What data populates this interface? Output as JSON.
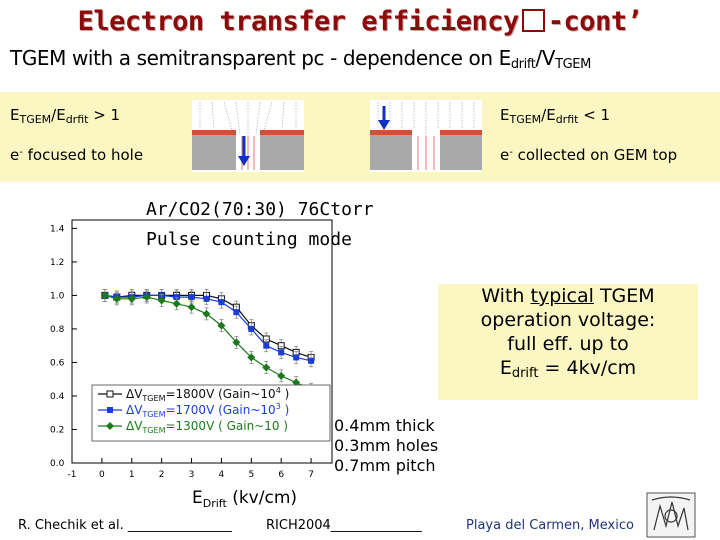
{
  "slide": {
    "title_left": "Electron transfer efficiency",
    "title_right": "-cont’",
    "subtitle": {
      "main": "TGEM with a semitransparent pc - dependence on E",
      "sub1": "drift",
      "slash": "/V",
      "sub2": "TGEM"
    }
  },
  "conditions": {
    "left": {
      "e1": "E",
      "s1": "TGEM",
      "mid": "/E",
      "s2": "drfit",
      "rel": " > 1",
      "desc_a": "e",
      "desc_sup": "-",
      "desc_b": " focused to hole"
    },
    "right": {
      "e1": "E",
      "s1": "TGEM",
      "mid": "/E",
      "s2": "drfit",
      "rel": " < 1",
      "desc_a": "e",
      "desc_sup": "-",
      "desc_b": " collected on GEM top"
    }
  },
  "callout": {
    "line1_a": "With ",
    "line1_u": "typical",
    "line1_b": " TGEM",
    "line2": "operation voltage:",
    "line3": "full eff. up to",
    "line4_a": "E",
    "line4_sub": "drift",
    "line4_b": " = 4kv/cm"
  },
  "geometry_note": [
    "0.4mm thick",
    "0.3mm holes",
    "0.7mm pitch"
  ],
  "footer": {
    "author": "R. Chechik et al. ________________",
    "event": "RICH2004______________",
    "location": "Playa del Carmen, Mexico"
  },
  "colors": {
    "title": "#8b0a0a",
    "band": "#fbf7c3",
    "series_black": "#111111",
    "series_blue": "#1a3fd6",
    "series_green": "#1c7a1c"
  },
  "chart_data": {
    "type": "line",
    "handwritten_title_1": "Ar/CO2(70:30) 76Ctorr",
    "handwritten_title_2": "Pulse counting mode",
    "xlabel_main": "E",
    "xlabel_sub": "Drift",
    "xlabel_unit": " (kv/cm)",
    "xlim": [
      -1,
      7.7
    ],
    "ylim": [
      0,
      1.45
    ],
    "xticks": [
      "-1",
      "0",
      "1",
      "2",
      "3",
      "4",
      "5",
      "6",
      "7"
    ],
    "yticks": [
      "0.0",
      "0.2",
      "0.4",
      "0.6",
      "0.8",
      "1.0",
      "1.2",
      "1.4"
    ],
    "grid": false,
    "legend_position": "bottom-left",
    "series": [
      {
        "name": "ΔV_TGEM=1800V (Gain~10^4 )",
        "leg_a": "ΔV",
        "leg_sub": "TGEM",
        "leg_b": "=1800V (Gain~10",
        "leg_sup": "4",
        "leg_c": " )",
        "marker": "square-open",
        "color": "#111111",
        "x": [
          0.1,
          0.5,
          1.0,
          1.5,
          2.0,
          2.5,
          3.0,
          3.5,
          4.0,
          4.5,
          5.0,
          5.5,
          6.0,
          6.5,
          7.0
        ],
        "y": [
          1.0,
          0.99,
          1.0,
          1.0,
          1.0,
          1.0,
          1.0,
          1.0,
          0.98,
          0.93,
          0.82,
          0.74,
          0.7,
          0.66,
          0.63
        ]
      },
      {
        "name": "ΔV_TGEM=1700V (Gain~10^3 )",
        "leg_a": "ΔV",
        "leg_sub": "TGEM",
        "leg_b": "=1700V (Gain~10",
        "leg_sup": "3",
        "leg_c": " )",
        "marker": "square-filled",
        "color": "#1a3fd6",
        "x": [
          0.1,
          0.5,
          1.0,
          1.5,
          2.0,
          2.5,
          3.0,
          3.5,
          4.0,
          4.5,
          5.0,
          5.5,
          6.0,
          6.5,
          7.0
        ],
        "y": [
          1.0,
          0.99,
          0.99,
          1.0,
          1.0,
          0.99,
          0.99,
          0.98,
          0.96,
          0.9,
          0.8,
          0.7,
          0.66,
          0.63,
          0.61
        ]
      },
      {
        "name": "ΔV_TGEM=1300V ( Gain~10 )",
        "leg_a": "ΔV",
        "leg_sub": "TGEM",
        "leg_b": "=1300V ( Gain~10 )",
        "leg_sup": "",
        "leg_c": "",
        "marker": "diamond-filled",
        "color": "#1c7a1c",
        "x": [
          0.1,
          0.5,
          1.0,
          1.5,
          2.0,
          2.5,
          3.0,
          3.5,
          4.0,
          4.5,
          5.0,
          5.5,
          6.0,
          6.5,
          7.0
        ],
        "y": [
          1.0,
          0.98,
          0.98,
          0.99,
          0.97,
          0.95,
          0.93,
          0.89,
          0.82,
          0.72,
          0.63,
          0.57,
          0.52,
          0.48,
          0.44
        ]
      }
    ]
  }
}
